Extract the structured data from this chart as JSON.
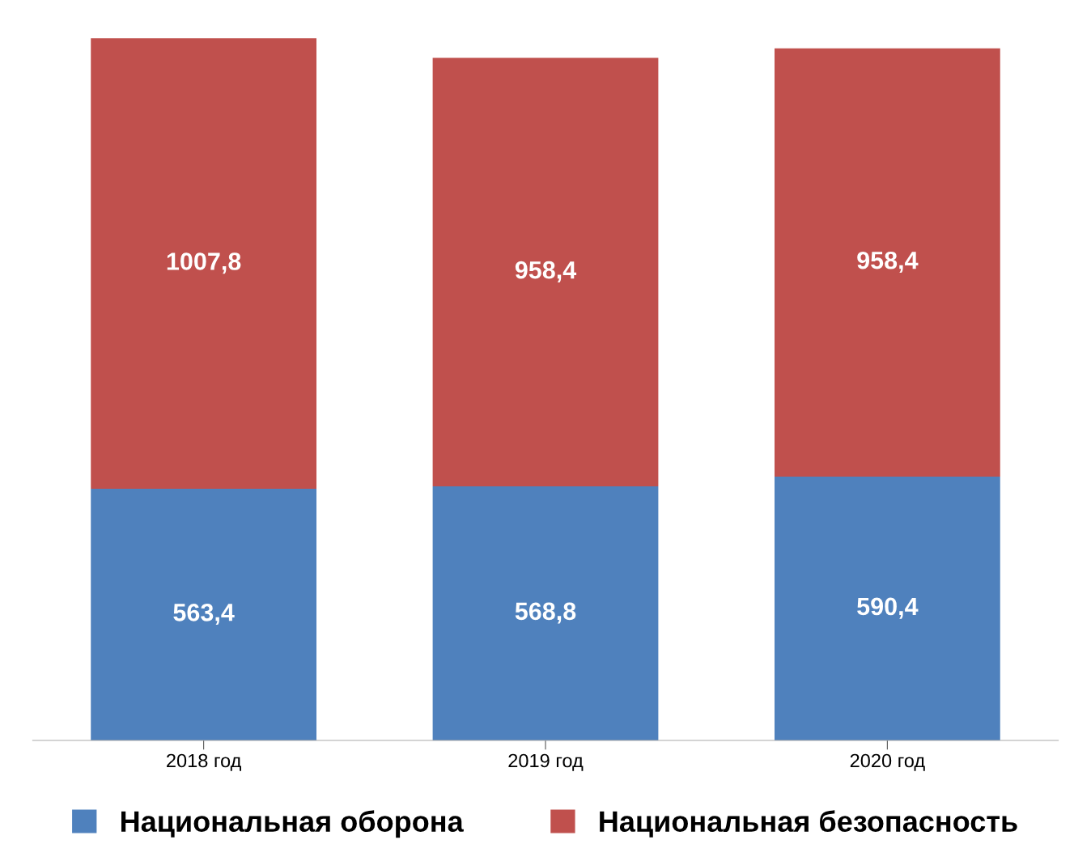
{
  "chart_data": {
    "type": "bar",
    "stacked": true,
    "categories": [
      "2018 год",
      "2019 год",
      "2020 год"
    ],
    "series": [
      {
        "name": "Национальная оборона",
        "color": "#4f81bd",
        "values": [
          563.4,
          568.8,
          590.4
        ],
        "value_labels": [
          "563,4",
          "568,8",
          "590,4"
        ]
      },
      {
        "name": "Национальная безопасность",
        "color": "#c0504d",
        "values": [
          1007.8,
          958.4,
          958.4
        ],
        "value_labels": [
          "1007,8",
          "958,4",
          "958,4"
        ]
      }
    ],
    "legend": "bottom",
    "grid": false,
    "tick_labels": "x"
  }
}
